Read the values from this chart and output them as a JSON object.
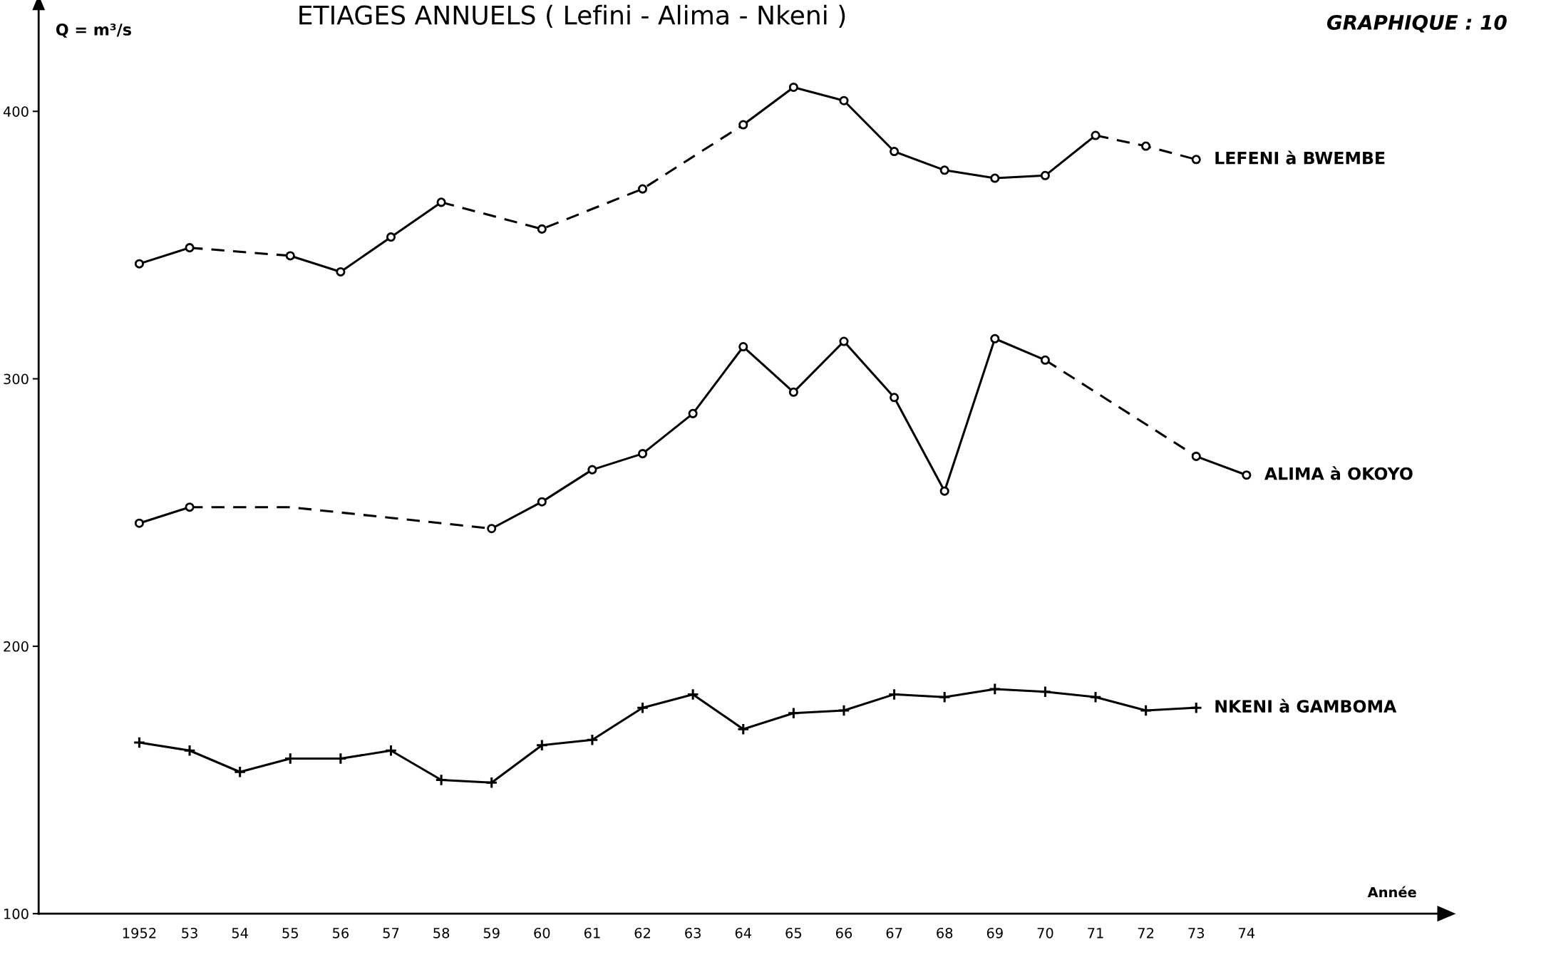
{
  "chart_data": {
    "type": "line",
    "title": "ETIAGES ANNUELS ( Lefini - Alima - Nkeni )",
    "ylabel": "Q = m³/s",
    "xlabel": "Année",
    "annotations": [
      "GRAPHIQUE : 10"
    ],
    "xlim": [
      1950,
      1977.8
    ],
    "ylim": [
      100,
      438
    ],
    "xticks": [
      {
        "value": 1952,
        "label": "1952"
      },
      {
        "value": 1953,
        "label": "53"
      },
      {
        "value": 1954,
        "label": "54"
      },
      {
        "value": 1955,
        "label": "55"
      },
      {
        "value": 1956,
        "label": "56"
      },
      {
        "value": 1957,
        "label": "57"
      },
      {
        "value": 1958,
        "label": "58"
      },
      {
        "value": 1959,
        "label": "59"
      },
      {
        "value": 1960,
        "label": "60"
      },
      {
        "value": 1961,
        "label": "61"
      },
      {
        "value": 1962,
        "label": "62"
      },
      {
        "value": 1963,
        "label": "63"
      },
      {
        "value": 1964,
        "label": "64"
      },
      {
        "value": 1965,
        "label": "65"
      },
      {
        "value": 1966,
        "label": "66"
      },
      {
        "value": 1967,
        "label": "67"
      },
      {
        "value": 1968,
        "label": "68"
      },
      {
        "value": 1969,
        "label": "69"
      },
      {
        "value": 1970,
        "label": "70"
      },
      {
        "value": 1971,
        "label": "71"
      },
      {
        "value": 1972,
        "label": "72"
      },
      {
        "value": 1973,
        "label": "73"
      },
      {
        "value": 1974,
        "label": "74"
      }
    ],
    "yticks": [
      100,
      200,
      300,
      400
    ],
    "grid": false,
    "legend": false,
    "series": [
      {
        "type": "scatter",
        "name": "LEFENI à BWEMBE",
        "color": "#000000",
        "marker": "circle",
        "x": [
          1952,
          1953,
          1955,
          1956,
          1957,
          1958,
          1960,
          1962,
          1964,
          1965,
          1966,
          1967,
          1968,
          1969,
          1970,
          1971,
          1972,
          1973
        ],
        "values": [
          343,
          349,
          346,
          340,
          353,
          366,
          356,
          371,
          395,
          409,
          404,
          385,
          378,
          375,
          376,
          391,
          387,
          382
        ]
      },
      {
        "color": "#000000",
        "line_style": "solid",
        "x": [
          1952,
          1953
        ],
        "values": [
          343,
          349
        ]
      },
      {
        "type": "line",
        "color": "#000000",
        "line_style": "dashed",
        "x": [
          1953,
          1955
        ],
        "values": [
          349,
          346
        ]
      },
      {
        "type": "line",
        "color": "#000000",
        "line_style": "solid",
        "x": [
          1955,
          1956,
          1957,
          1958
        ],
        "values": [
          346,
          340,
          353,
          366
        ]
      },
      {
        "type": "line",
        "color": "#000000",
        "line_style": "dashed",
        "x": [
          1958,
          1960,
          1962,
          1964
        ],
        "values": [
          366,
          356,
          371,
          395
        ]
      },
      {
        "type": "line",
        "color": "#000000",
        "line_style": "solid",
        "x": [
          1964,
          1965,
          1966,
          1967,
          1968,
          1969,
          1970,
          1971
        ],
        "values": [
          395,
          409,
          404,
          385,
          378,
          375,
          376,
          391
        ]
      },
      {
        "type": "line",
        "color": "#000000",
        "line_style": "dashed",
        "x": [
          1971,
          1972,
          1973
        ],
        "values": [
          391,
          387,
          382
        ]
      },
      {
        "type": "scatter",
        "name": "ALIMA à OKOYO",
        "color": "#000000",
        "marker": "circle",
        "x": [
          1952,
          1953,
          1959,
          1960,
          1961,
          1962,
          1963,
          1964,
          1965,
          1966,
          1967,
          1968,
          1969,
          1970,
          1973,
          1974
        ],
        "values": [
          246,
          252,
          244,
          254,
          266,
          272,
          287,
          312,
          295,
          314,
          293,
          258,
          315,
          307,
          271,
          264
        ]
      },
      {
        "type": "line",
        "color": "#000000",
        "line_style": "solid",
        "x": [
          1952,
          1953
        ],
        "values": [
          246,
          252
        ]
      },
      {
        "type": "line",
        "color": "#000000",
        "line_style": "dashed",
        "x": [
          1953,
          1955,
          1957,
          1959
        ],
        "values": [
          252,
          252,
          248,
          244
        ]
      },
      {
        "type": "line",
        "color": "#000000",
        "line_style": "solid",
        "x": [
          1959,
          1960,
          1961,
          1962,
          1963,
          1964,
          1965,
          1966,
          1967,
          1968,
          1969,
          1970
        ],
        "values": [
          244,
          254,
          266,
          272,
          287,
          312,
          295,
          314,
          293,
          258,
          315,
          307
        ]
      },
      {
        "type": "line",
        "color": "#000000",
        "line_style": "dashed",
        "x": [
          1970,
          1973
        ],
        "values": [
          307,
          271
        ]
      },
      {
        "type": "line",
        "color": "#000000",
        "line_style": "solid",
        "x": [
          1973,
          1974
        ],
        "values": [
          271,
          264
        ]
      },
      {
        "type": "scatter",
        "name": "NKENI à GAMBOMA",
        "color": "#000000",
        "marker": "cross",
        "x": [
          1952,
          1953,
          1954,
          1955,
          1956,
          1957,
          1958,
          1959,
          1960,
          1961,
          1962,
          1963,
          1964,
          1965,
          1966,
          1967,
          1968,
          1969,
          1970,
          1971,
          1972,
          1973
        ],
        "values": [
          164,
          161,
          153,
          158,
          158,
          161,
          150,
          149,
          163,
          165,
          177,
          182,
          169,
          175,
          176,
          182,
          181,
          184,
          183,
          181,
          176,
          177
        ]
      },
      {
        "type": "line",
        "color": "#000000",
        "line_style": "solid",
        "x": [
          1952,
          1953,
          1954,
          1955,
          1956,
          1957,
          1958,
          1959,
          1960,
          1961,
          1962,
          1963,
          1964,
          1965,
          1966,
          1967,
          1968,
          1969,
          1970,
          1971,
          1972,
          1973
        ],
        "values": [
          164,
          161,
          153,
          158,
          158,
          161,
          150,
          149,
          163,
          165,
          177,
          182,
          169,
          175,
          176,
          182,
          181,
          184,
          183,
          181,
          176,
          177
        ]
      }
    ]
  }
}
